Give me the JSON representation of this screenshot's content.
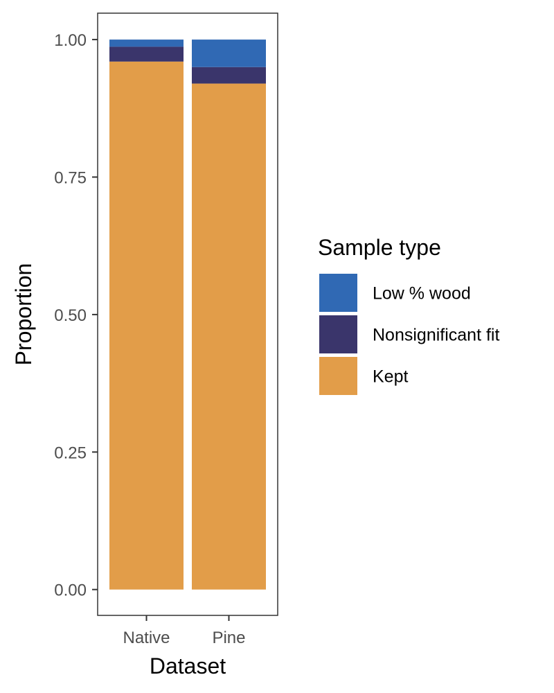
{
  "chart_data": {
    "type": "bar",
    "stacked": true,
    "categories": [
      "Native",
      "Pine"
    ],
    "series": [
      {
        "name": "Kept",
        "values": [
          0.96,
          0.92
        ],
        "color": "#E29D49"
      },
      {
        "name": "Nonsignificant fit",
        "values": [
          0.027,
          0.03
        ],
        "color": "#3A356B"
      },
      {
        "name": "Low % wood",
        "values": [
          0.013,
          0.05
        ],
        "color": "#3069B4"
      }
    ],
    "xlabel": "Dataset",
    "ylabel": "Proportion",
    "ylim": [
      -0.047,
      1.048
    ],
    "yticks": [
      0.0,
      0.25,
      0.5,
      0.75,
      1.0
    ],
    "ytick_labels": [
      "0.00",
      "0.25",
      "0.50",
      "0.75",
      "1.00"
    ],
    "grid": false,
    "legend": {
      "title": "Sample type",
      "placement": "right",
      "entries": [
        "Low % wood",
        "Nonsignificant fit",
        "Kept"
      ]
    }
  }
}
